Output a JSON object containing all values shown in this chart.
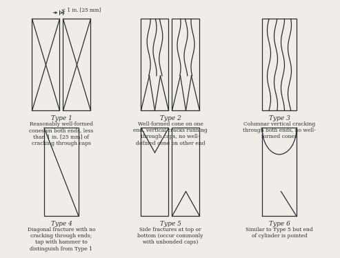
{
  "bg_color": "#f0ede8",
  "line_color": "#2a2a2a",
  "text_color": "#2a2a2a",
  "title_fontsize": 6.5,
  "desc_fontsize": 5.5,
  "fig_width": 4.74,
  "fig_height": 3.26,
  "types": [
    {
      "label": "Type 1",
      "desc": "Reasonably well-formed\ncones on both ends, less\nthan 1 in. [25 mm] of\ncracking through caps"
    },
    {
      "label": "Type 2",
      "desc": "Well-formed cone on one\nend, vertical cracks running\nthrough caps, no well-\ndefined cone on other end"
    },
    {
      "label": "Type 3",
      "desc": "Columnar vertical cracking\nthrough both ends, no well-\nformed cones"
    },
    {
      "label": "Type 4",
      "desc": "Diagonal fracture with no\ncracking through ends;\ntap with hammer to\ndistinguish from Type 1"
    },
    {
      "label": "Type 5",
      "desc": "Side fractures at top or\nbottom (occur commonly\nwith unbonded caps)"
    },
    {
      "label": "Type 6",
      "desc": "Similar to Type 5 but end\nof cylinder is pointed"
    }
  ]
}
